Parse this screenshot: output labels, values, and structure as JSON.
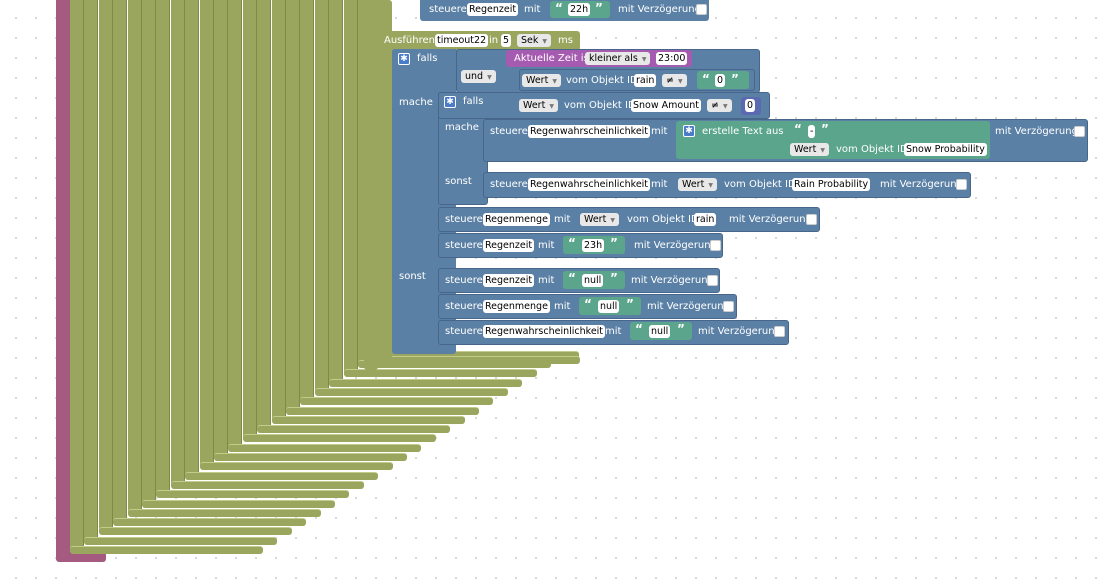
{
  "colors": {
    "event": "#9aa55e",
    "logic": "#5b80a5",
    "text": "#5ba58c",
    "compare": "#a55bb0",
    "function": "#a55b80"
  },
  "top": {
    "steuere": "steuere",
    "var": "Regenzeit",
    "mit": "mit",
    "value": "22h",
    "delay": "mit Verzögerung"
  },
  "timeout": {
    "label": "Ausführen",
    "name": "timeout22",
    "in": "in",
    "count": "5",
    "unit": "Sek",
    "ms": "ms"
  },
  "if1": {
    "falls": "falls",
    "condition": "Aktuelle Zeit ist",
    "op": "kleiner als",
    "time": "23:00",
    "und": "und",
    "wert": "Wert",
    "vom": "vom Objekt ID",
    "id": "rain",
    "neq": "≠",
    "zero": "0",
    "mache": "mache",
    "sonst": "sonst"
  },
  "if2": {
    "falls": "falls",
    "wert": "Wert",
    "vom": "vom Objekt ID",
    "id": "Snow Amount",
    "neq": "≠",
    "zero": "0",
    "mache": "mache",
    "sonst": "sonst"
  },
  "mache_block": {
    "steuere": "steuere",
    "var": "Regenwahrscheinlichkeit",
    "mit": "mit",
    "create": "erstelle Text aus",
    "str": "-",
    "wert": "Wert",
    "vom": "vom Objekt ID",
    "id": "Snow Probability",
    "delay": "mit Verzögerung"
  },
  "sonst_block": {
    "steuere": "steuere",
    "var": "Regenwahrscheinlichkeit",
    "mit": "mit",
    "wert": "Wert",
    "vom": "vom Objekt ID",
    "id": "Rain Probability",
    "delay": "mit Verzögerung"
  },
  "menge": {
    "steuere": "steuere",
    "var": "Regenmenge",
    "mit": "mit",
    "wert": "Wert",
    "vom": "vom Objekt ID",
    "id": "rain",
    "delay": "mit Verzögerung"
  },
  "zeit23": {
    "steuere": "steuere",
    "var": "Regenzeit",
    "mit": "mit",
    "value": "23h",
    "delay": "mit Verzögerung"
  },
  "else_rows": [
    {
      "steuere": "steuere",
      "var": "Regenzeit",
      "mit": "mit",
      "value": "null",
      "delay": "mit Verzögerung"
    },
    {
      "steuere": "steuere",
      "var": "Regenmenge",
      "mit": "mit",
      "value": "null",
      "delay": "mit Verzögerung"
    },
    {
      "steuere": "steuere",
      "var": "Regenwahrscheinlichkeit",
      "mit": "mit",
      "value": "null",
      "delay": "mit Verzögerung"
    }
  ]
}
